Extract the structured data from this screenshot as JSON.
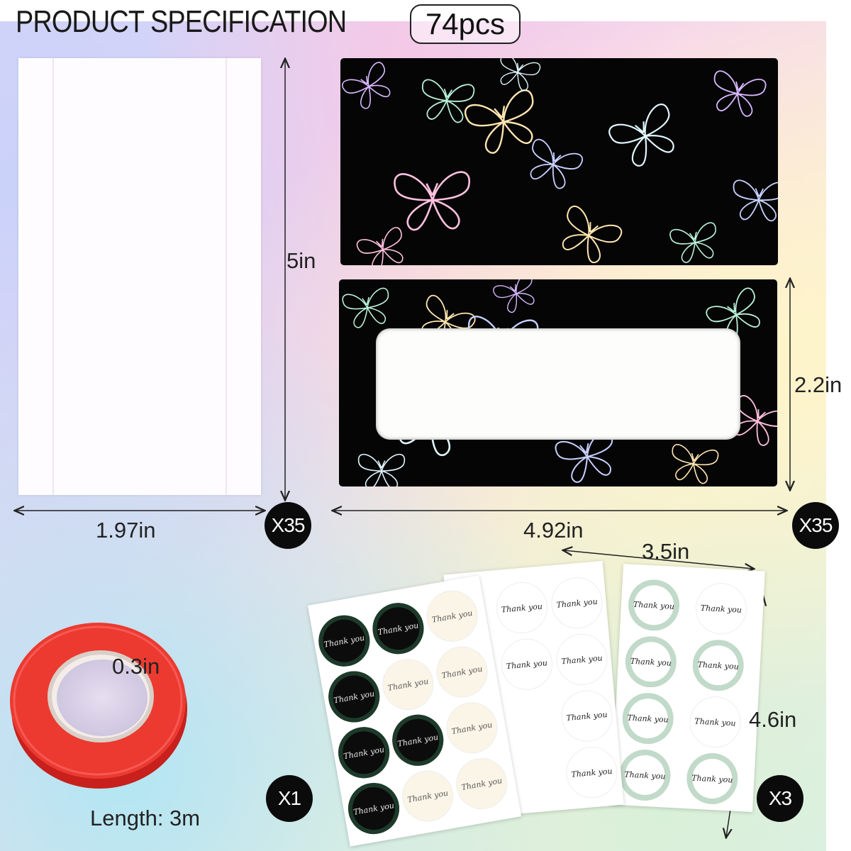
{
  "title": "PRODUCT SPECIFICATION",
  "badge": "74pcs",
  "bag": {
    "height": "5in",
    "width": "1.97in",
    "quantity": "X35"
  },
  "cards": {
    "height": "2.2in",
    "width": "4.92in",
    "quantity": "X35"
  },
  "stickers": {
    "width": "3.5in",
    "height": "4.6in",
    "quantity": "X3",
    "sticker_text": "Thank you"
  },
  "tape": {
    "width": "0.3in",
    "length": "Length: 3m",
    "quantity": "X1"
  },
  "colors": {
    "card": "#050505",
    "tape": "#e8302a",
    "badge_border": "#222222"
  }
}
